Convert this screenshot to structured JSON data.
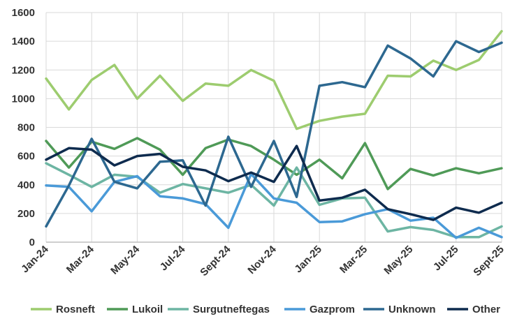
{
  "chart_data": {
    "type": "line",
    "title": "",
    "xlabel": "",
    "ylabel": "",
    "ylim": [
      0,
      1600
    ],
    "yticks": [
      0,
      200,
      400,
      600,
      800,
      1000,
      1200,
      1400,
      1600
    ],
    "grid": true,
    "legend": "bottom",
    "x": [
      "Jan-24",
      "Feb-24",
      "Mar-24",
      "Apr-24",
      "May-24",
      "Jun-24",
      "Jul-24",
      "Aug-24",
      "Sept-24",
      "Oct-24",
      "Nov-24",
      "Dec-24",
      "Jan-25",
      "Feb-25",
      "Mar-25",
      "Apr-25",
      "May-25",
      "Jun-25",
      "Jul-25",
      "Aug-25",
      "Sept-25"
    ],
    "xtick_labels": [
      "Jan-24",
      "Mar-24",
      "May-24",
      "Jul-24",
      "Sept-24",
      "Nov-24",
      "Jan-25",
      "Mar-25",
      "May-25",
      "Jul-25",
      "Sept-25"
    ],
    "series": [
      {
        "name": "Rosneft",
        "color": "#9dcc6f",
        "values": [
          1140,
          925,
          1130,
          1235,
          1000,
          1160,
          985,
          1105,
          1090,
          1200,
          1125,
          790,
          845,
          875,
          895,
          1160,
          1155,
          1265,
          1200,
          1270,
          1470
        ]
      },
      {
        "name": "Lukoil",
        "color": "#4f9a57",
        "values": [
          705,
          520,
          700,
          650,
          725,
          645,
          470,
          655,
          715,
          670,
          575,
          470,
          575,
          445,
          690,
          370,
          510,
          465,
          515,
          480,
          515
        ]
      },
      {
        "name": "Surgutneftegas",
        "color": "#6db5a3",
        "values": [
          550,
          470,
          385,
          470,
          455,
          345,
          405,
          375,
          345,
          400,
          255,
          520,
          260,
          305,
          310,
          75,
          105,
          85,
          35,
          35,
          110
        ]
      },
      {
        "name": "Gazprom",
        "color": "#4a9ad8",
        "values": [
          395,
          385,
          215,
          420,
          460,
          320,
          305,
          265,
          100,
          475,
          305,
          275,
          140,
          145,
          195,
          230,
          150,
          170,
          30,
          100,
          35
        ]
      },
      {
        "name": "Unknown",
        "color": "#2d6890",
        "values": [
          110,
          395,
          720,
          420,
          375,
          560,
          570,
          255,
          735,
          385,
          705,
          315,
          1090,
          1115,
          1080,
          1370,
          1280,
          1155,
          1400,
          1325,
          1390
        ]
      },
      {
        "name": "Other",
        "color": "#0e2b4e",
        "values": [
          575,
          655,
          645,
          535,
          600,
          615,
          525,
          500,
          425,
          485,
          420,
          670,
          290,
          310,
          365,
          230,
          195,
          155,
          240,
          205,
          275
        ]
      }
    ]
  }
}
